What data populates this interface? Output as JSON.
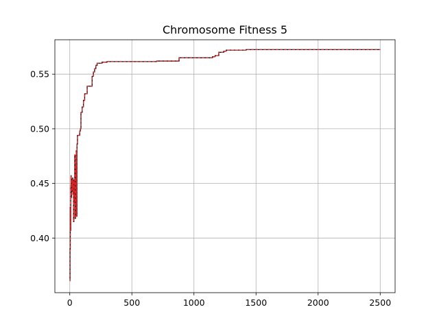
{
  "chart_data": {
    "type": "line",
    "title": "Chromosome Fitness 5",
    "xlabel": "",
    "ylabel": "",
    "xlim": [
      -120,
      2620
    ],
    "ylim": [
      0.35,
      0.5815
    ],
    "xticks": [
      0,
      500,
      1000,
      1500,
      2000,
      2500
    ],
    "xtick_labels": [
      "0",
      "500",
      "1000",
      "1500",
      "2000",
      "2500"
    ],
    "yticks": [
      0.4,
      0.45,
      0.5,
      0.55
    ],
    "ytick_labels": [
      "0.40",
      "0.45",
      "0.50",
      "0.55"
    ],
    "grid": true,
    "series": [
      {
        "color": "#d62728",
        "overlay_color": "#000000",
        "x": [
          0,
          2,
          4,
          6,
          8,
          10,
          12,
          14,
          16,
          18,
          20,
          22,
          25,
          28,
          30,
          33,
          36,
          40,
          43,
          46,
          50,
          52,
          55,
          58,
          62,
          66,
          70,
          75,
          80,
          85,
          90,
          95,
          100,
          110,
          120,
          130,
          140,
          150,
          160,
          170,
          180,
          190,
          200,
          210,
          220,
          230,
          240,
          260,
          300,
          400,
          500,
          600,
          700,
          800,
          870,
          880,
          950,
          1050,
          1150,
          1170,
          1200,
          1240,
          1260,
          1350,
          1420,
          1450,
          1600,
          1800,
          2000,
          2200,
          2400,
          2500
        ],
        "y": [
          0.361,
          0.39,
          0.428,
          0.407,
          0.448,
          0.457,
          0.437,
          0.452,
          0.443,
          0.454,
          0.446,
          0.455,
          0.44,
          0.452,
          0.415,
          0.453,
          0.432,
          0.476,
          0.418,
          0.466,
          0.42,
          0.48,
          0.42,
          0.486,
          0.494,
          0.494,
          0.494,
          0.494,
          0.498,
          0.5,
          0.515,
          0.515,
          0.52,
          0.526,
          0.532,
          0.532,
          0.539,
          0.539,
          0.539,
          0.539,
          0.548,
          0.552,
          0.555,
          0.558,
          0.56,
          0.56,
          0.56,
          0.561,
          0.5615,
          0.5615,
          0.5615,
          0.5615,
          0.562,
          0.562,
          0.562,
          0.565,
          0.565,
          0.565,
          0.566,
          0.567,
          0.57,
          0.571,
          0.572,
          0.572,
          0.5725,
          0.5725,
          0.5725,
          0.5725,
          0.5725,
          0.5725,
          0.5725,
          0.5725
        ]
      }
    ]
  }
}
